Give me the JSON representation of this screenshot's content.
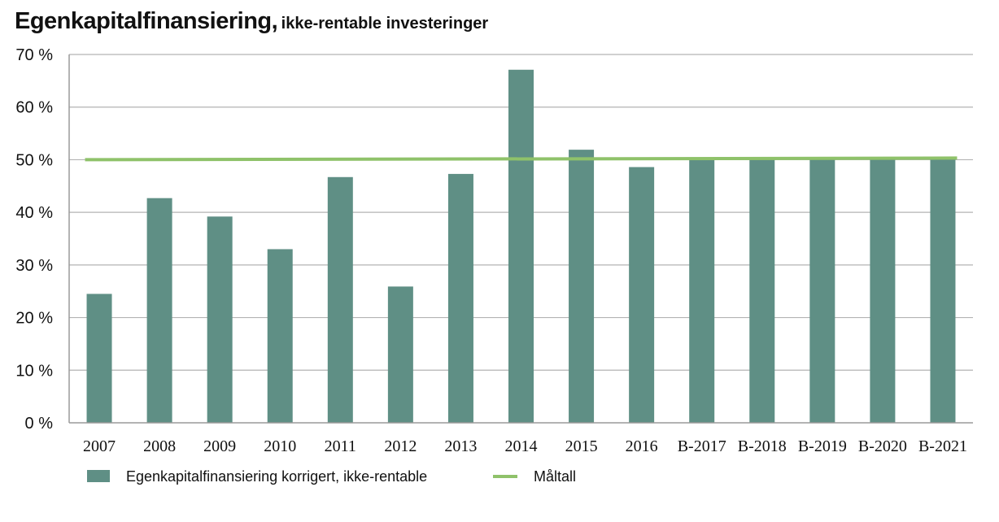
{
  "chart_data": {
    "type": "bar",
    "title": "Egenkapitalfinansiering,",
    "subtitle": "ikke-rentable investeringer",
    "categories": [
      "2007",
      "2008",
      "2009",
      "2010",
      "2011",
      "2012",
      "2013",
      "2014",
      "2015",
      "2016",
      "B-2017",
      "B-2018",
      "B-2019",
      "B-2020",
      "B-2021"
    ],
    "series": [
      {
        "name": "Egenkapitalfinansiering korrigert, ikke-rentable",
        "type": "bar",
        "color": "#5f8f85",
        "values": [
          24.5,
          42.7,
          39.2,
          33.0,
          46.7,
          25.9,
          47.3,
          67.1,
          51.9,
          48.6,
          50.3,
          50.3,
          50.3,
          50.3,
          50.3
        ]
      },
      {
        "name": "Måltall",
        "type": "line",
        "color": "#8fc26a",
        "values": [
          50,
          50,
          50,
          50,
          50,
          50,
          50,
          50,
          50,
          50,
          50,
          50,
          50,
          50,
          50
        ]
      }
    ],
    "yticks": [
      "0 %",
      "10 %",
      "20 %",
      "30 %",
      "40 %",
      "50 %",
      "60 %",
      "70 %"
    ],
    "ylim": [
      0,
      70
    ],
    "xlabel": "",
    "ylabel": "",
    "grid": true,
    "legend_position": "bottom"
  }
}
